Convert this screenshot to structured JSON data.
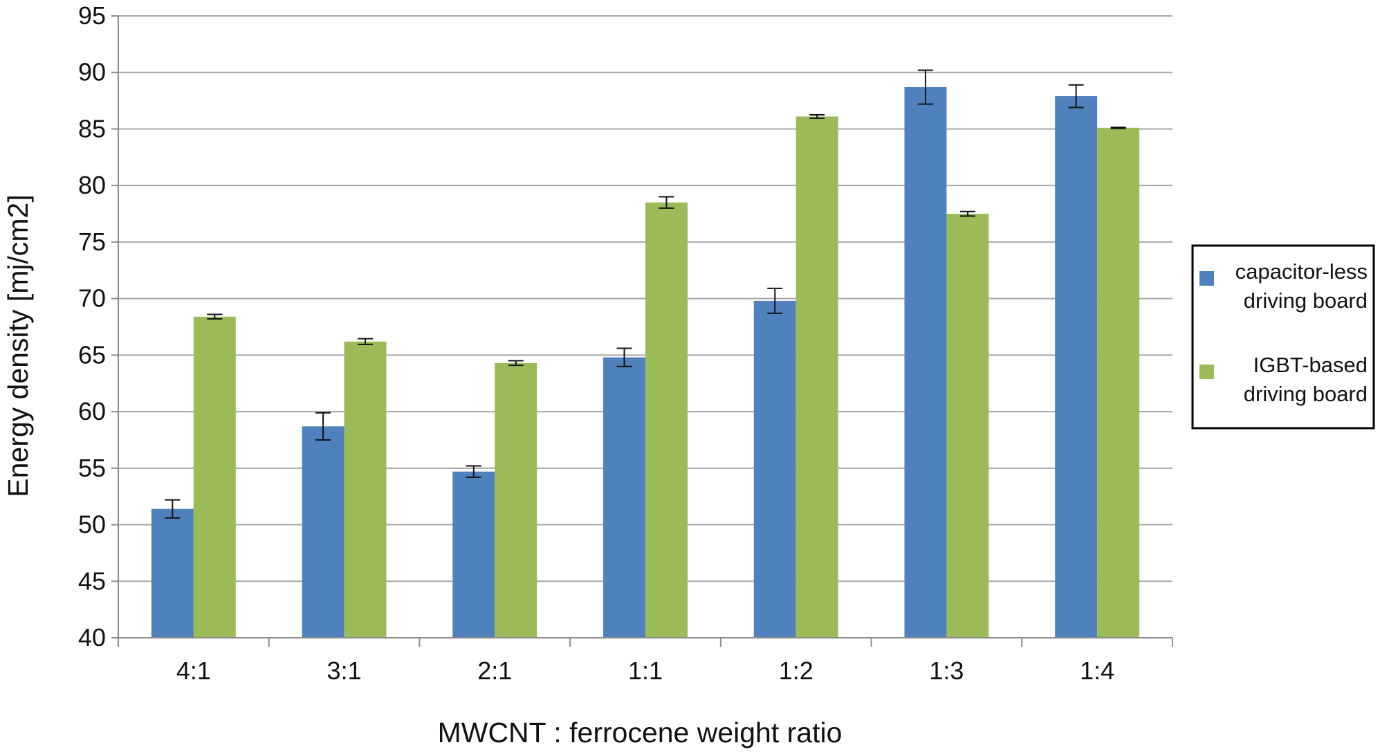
{
  "chart_data": {
    "type": "bar",
    "title": "",
    "xlabel": "MWCNT : ferrocene weight ratio",
    "ylabel": "Energy density [mj/cm2]",
    "ylim": [
      40,
      95
    ],
    "y_ticks": [
      40,
      45,
      50,
      55,
      60,
      65,
      70,
      75,
      80,
      85,
      90,
      95
    ],
    "grid": true,
    "legend_position": "right",
    "categories": [
      "4:1",
      "3:1",
      "2:1",
      "1:1",
      "1:2",
      "1:3",
      "1:4"
    ],
    "series": [
      {
        "name": "capacitor-less driving board",
        "legend_lines": [
          "capacitor-less",
          "driving board"
        ],
        "color": "#4f81bd",
        "values": [
          51.4,
          58.7,
          54.7,
          64.8,
          69.8,
          88.7,
          87.9
        ],
        "errors": [
          0.8,
          1.2,
          0.5,
          0.8,
          1.1,
          1.5,
          1.0
        ]
      },
      {
        "name": "IGBT-based driving board",
        "legend_lines": [
          "IGBT-based",
          "driving board"
        ],
        "color": "#9bbb59",
        "values": [
          68.4,
          66.2,
          64.3,
          78.5,
          86.1,
          77.5,
          85.1
        ],
        "errors": [
          0.2,
          0.25,
          0.2,
          0.5,
          0.15,
          0.2,
          0.05
        ]
      }
    ]
  }
}
